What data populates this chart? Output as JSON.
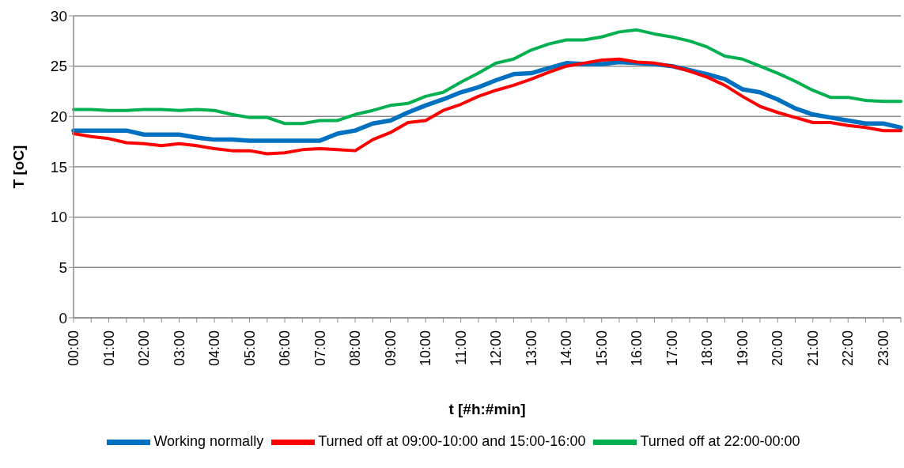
{
  "chart_data": {
    "type": "line",
    "xlabel": "t [#h:#min]",
    "ylabel": "T [oC]",
    "categories": [
      "00:00",
      null,
      "01:00",
      null,
      "02:00",
      null,
      "03:00",
      null,
      "04:00",
      null,
      "05:00",
      null,
      "06:00",
      null,
      "07:00",
      null,
      "08:00",
      null,
      "09:00",
      null,
      "10:00",
      null,
      "11:00",
      null,
      "12:00",
      null,
      "13:00",
      null,
      "14:00",
      null,
      "15:00",
      null,
      "16:00",
      null,
      "17:00",
      null,
      "18:00",
      null,
      "19:00",
      null,
      "20:00",
      null,
      "21:00",
      null,
      "22:00",
      null,
      "23:00",
      null
    ],
    "series": [
      {
        "name": "Working normally",
        "color": "#0070c0",
        "values": [
          18.6,
          18.6,
          18.6,
          18.6,
          18.2,
          18.2,
          18.2,
          17.9,
          17.7,
          17.7,
          17.6,
          17.6,
          17.6,
          17.6,
          17.6,
          18.3,
          18.6,
          19.3,
          19.6,
          20.4,
          21.1,
          21.7,
          22.4,
          22.9,
          23.6,
          24.2,
          24.3,
          24.8,
          25.3,
          25.2,
          25.2,
          25.4,
          25.3,
          25.2,
          25.0,
          24.6,
          24.2,
          23.7,
          22.7,
          22.4,
          21.7,
          20.8,
          20.2,
          19.9,
          19.6,
          19.3,
          19.3,
          18.9
        ]
      },
      {
        "name": "Turned off at 09:00-10:00 and 15:00-16:00",
        "color": "#ff0000",
        "values": [
          18.3,
          18.0,
          17.8,
          17.4,
          17.3,
          17.1,
          17.3,
          17.1,
          16.8,
          16.6,
          16.6,
          16.3,
          16.4,
          16.7,
          16.8,
          16.7,
          16.6,
          17.7,
          18.4,
          19.4,
          19.6,
          20.6,
          21.2,
          22.0,
          22.6,
          23.1,
          23.7,
          24.4,
          25.0,
          25.3,
          25.6,
          25.7,
          25.4,
          25.3,
          25.0,
          24.5,
          23.9,
          23.1,
          22.0,
          21.0,
          20.4,
          19.9,
          19.4,
          19.4,
          19.1,
          18.9,
          18.6,
          18.6
        ]
      },
      {
        "name": "Turned off at 22:00-00:00",
        "color": "#00b050",
        "values": [
          20.7,
          20.7,
          20.6,
          20.6,
          20.7,
          20.7,
          20.6,
          20.7,
          20.6,
          20.2,
          19.9,
          19.9,
          19.3,
          19.3,
          19.6,
          19.6,
          20.2,
          20.6,
          21.1,
          21.3,
          22.0,
          22.4,
          23.4,
          24.3,
          25.3,
          25.7,
          26.6,
          27.2,
          27.6,
          27.6,
          27.9,
          28.4,
          28.6,
          28.2,
          27.9,
          27.5,
          26.9,
          26.0,
          25.7,
          25.0,
          24.3,
          23.5,
          22.6,
          21.9,
          21.9,
          21.6,
          21.5,
          21.5
        ]
      }
    ],
    "ylim": [
      0,
      30
    ],
    "yticks": [
      0,
      5,
      10,
      15,
      20,
      25,
      30
    ],
    "grid": "y",
    "legend": "bottom",
    "marker": "none",
    "line_style": "solid"
  }
}
